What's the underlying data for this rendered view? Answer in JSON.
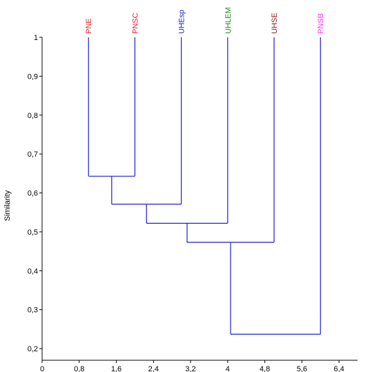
{
  "chart_data": {
    "type": "dendrogram",
    "ylabel": "Similarity",
    "xlim": [
      0,
      6.8
    ],
    "ylim": [
      0.17,
      1.0
    ],
    "x_ticks": [
      "0",
      "0,8",
      "1,6",
      "2,4",
      "3,2",
      "4",
      "4,8",
      "5,6",
      "6,4"
    ],
    "y_ticks": [
      "0,2",
      "0,3",
      "0,4",
      "0,5",
      "0,6",
      "0,7",
      "0,8",
      "0,9",
      "1"
    ],
    "leaves": [
      {
        "label": "PNE",
        "x": 1,
        "color": "#e8202a"
      },
      {
        "label": "PNSC",
        "x": 2,
        "color": "#e8202a"
      },
      {
        "label": "UHEsp",
        "x": 3,
        "color": "#1c1ccc"
      },
      {
        "label": "UHLEM",
        "x": 4,
        "color": "#1f8a1f"
      },
      {
        "label": "UHSE",
        "x": 5,
        "color": "#8b1a1a"
      },
      {
        "label": "PNSB",
        "x": 6,
        "color": "#ff33ff"
      }
    ],
    "merges": [
      {
        "left": "PNE",
        "right": "PNSC",
        "similarity": 0.643
      },
      {
        "left": "m0",
        "right": "UHEsp",
        "similarity": 0.571
      },
      {
        "left": "m1",
        "right": "UHLEM",
        "similarity": 0.522
      },
      {
        "left": "m2",
        "right": "UHSE",
        "similarity": 0.473
      },
      {
        "left": "m3",
        "right": "PNSB",
        "similarity": 0.237
      }
    ],
    "line_color": "#1c1ccc",
    "axis_color": "#000000"
  }
}
